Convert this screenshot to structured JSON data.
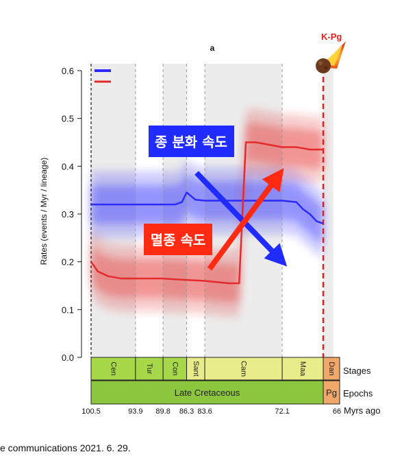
{
  "chart_data": {
    "type": "line",
    "title": "a",
    "ylabel": "Rates (events / Myr / lineage)",
    "xlabel": "Myrs ago",
    "ylim": [
      0.0,
      0.6
    ],
    "yticks": [
      "0.0",
      "0.1",
      "0.2",
      "0.3",
      "0.4",
      "0.5",
      "0.6"
    ],
    "x_range": [
      100.5,
      66
    ],
    "grid": false,
    "series": [
      {
        "name": "종 분화 속도",
        "color": "#2b2bff",
        "x": [
          100.5,
          95,
          90,
          88,
          87,
          86.3,
          85,
          83.6,
          80,
          76,
          72.1,
          70,
          69,
          68,
          67,
          66
        ],
        "y": [
          0.32,
          0.32,
          0.32,
          0.32,
          0.325,
          0.345,
          0.33,
          0.328,
          0.328,
          0.328,
          0.328,
          0.325,
          0.31,
          0.3,
          0.285,
          0.28
        ]
      },
      {
        "name": "멸종 속도",
        "color": "#e42a2a",
        "x": [
          100.5,
          99.5,
          98,
          96,
          93.9,
          90,
          86.3,
          83.6,
          80,
          78.5,
          78,
          77.5,
          76,
          72.1,
          70,
          68,
          66
        ],
        "y": [
          0.2,
          0.18,
          0.17,
          0.165,
          0.165,
          0.165,
          0.162,
          0.16,
          0.155,
          0.155,
          0.3,
          0.45,
          0.45,
          0.44,
          0.44,
          0.435,
          0.435
        ]
      }
    ],
    "legend_position": "top-left",
    "event_marker": {
      "label": "K-Pg",
      "x": 66
    },
    "annotations": {
      "speciation": "종 분화 속도",
      "extinction": "멸종 속도"
    },
    "boundaries": [
      {
        "x": 100.5,
        "label": "100.5"
      },
      {
        "x": 93.9,
        "label": "93.9"
      },
      {
        "x": 89.8,
        "label": "89.8"
      },
      {
        "x": 86.3,
        "label": "86.3"
      },
      {
        "x": 83.6,
        "label": "83.6"
      },
      {
        "x": 72.1,
        "label": "72.1"
      },
      {
        "x": 66,
        "label": "66"
      }
    ],
    "stages": [
      {
        "label": "Cen",
        "from": 100.5,
        "to": 93.9
      },
      {
        "label": "Tur",
        "from": 93.9,
        "to": 89.8
      },
      {
        "label": "Con",
        "from": 89.8,
        "to": 86.3
      },
      {
        "label": "Sant",
        "from": 86.3,
        "to": 83.6
      },
      {
        "label": "Cam",
        "from": 83.6,
        "to": 72.1
      },
      {
        "label": "Maa",
        "from": 72.1,
        "to": 66
      },
      {
        "label": "Dan",
        "from": 66,
        "to": 64.5
      }
    ],
    "epochs": [
      {
        "label": "Late Cretaceous",
        "from": 100.5,
        "to": 66
      },
      {
        "label": "Pg",
        "from": 66,
        "to": 64.5
      }
    ],
    "row_labels": {
      "stages": "Stages",
      "epochs": "Epochs"
    },
    "colors": {
      "late_cretaceous": "#8cc63f",
      "cen_tur_con": "#a6d84a",
      "sant_cam_maa": "#e9ec8b",
      "paleogene": "#f0a86a",
      "shade": "#ececec",
      "kpg_line": "#e02020"
    }
  },
  "caption": "e communications 2021. 6. 29."
}
